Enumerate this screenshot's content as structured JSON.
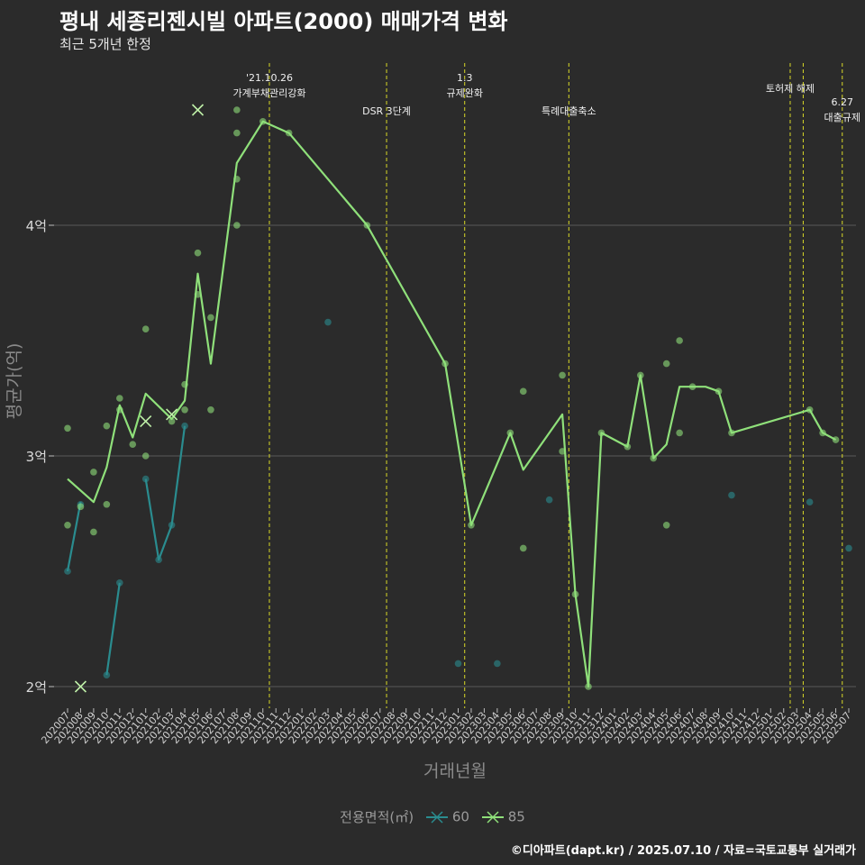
{
  "title": "평내 세종리젠시빌 아파트(2000) 매매가격 변화",
  "subtitle": "최근 5개년 한정",
  "caption": "©디아파트(dapt.kr) / 2025.07.10 / 자료=국토교통부 실거래가",
  "legend": {
    "title": "전용면적(㎡)",
    "items": [
      "60",
      "85"
    ]
  },
  "colors": {
    "background": "#2b2b2b",
    "series60": "#2a8c8f",
    "series85": "#8fe07a",
    "events": "#d9d927",
    "grid": "#5a5a5a"
  },
  "chart_data": {
    "type": "line",
    "title": "평내 세종리젠시빌 아파트(2000) 매매가격 변화",
    "subtitle": "최근 5개년 한정",
    "xlabel": "거래년월",
    "ylabel": "평균가(억)",
    "y_unit": "억",
    "ylim": [
      1.9,
      4.5
    ],
    "yticks": [
      2,
      3,
      4
    ],
    "ytick_labels": [
      "2억",
      "3억",
      "4억"
    ],
    "grid": "horizontal",
    "legend_position": "bottom",
    "categories": [
      "202007",
      "202008",
      "202009",
      "202010",
      "202011",
      "202012",
      "202101",
      "202102",
      "202103",
      "202104",
      "202105",
      "202106",
      "202107",
      "202108",
      "202109",
      "202110",
      "202111",
      "202112",
      "202201",
      "202202",
      "202203",
      "202204",
      "202205",
      "202206",
      "202207",
      "202208",
      "202209",
      "202210",
      "202211",
      "202212",
      "202301",
      "202302",
      "202303",
      "202304",
      "202305",
      "202306",
      "202307",
      "202308",
      "202309",
      "202310",
      "202311",
      "202312",
      "202401",
      "202402",
      "202403",
      "202404",
      "202405",
      "202406",
      "202407",
      "202408",
      "202409",
      "202410",
      "202411",
      "202412",
      "202501",
      "202502",
      "202503",
      "202504",
      "202505",
      "202506",
      "202507"
    ],
    "series": [
      {
        "name": "60",
        "line": [
          [
            "202007",
            2.5
          ],
          [
            "202008",
            2.8
          ],
          [
            "202009",
            null
          ],
          [
            "202010",
            2.05
          ],
          [
            "202011",
            2.45
          ],
          [
            "202012",
            null
          ],
          [
            "202101",
            2.9
          ],
          [
            "202102",
            2.55
          ],
          [
            "202103",
            2.7
          ],
          [
            "202104",
            3.13
          ],
          [
            "202105",
            null
          ],
          [
            "202504",
            2.8
          ],
          [
            "202505",
            null
          ],
          [
            "202506",
            null
          ],
          [
            "202507",
            2.6
          ]
        ],
        "points": [
          [
            "202007",
            2.5
          ],
          [
            "202008",
            2.79
          ],
          [
            "202010",
            2.05
          ],
          [
            "202011",
            2.45
          ],
          [
            "202101",
            2.9
          ],
          [
            "202102",
            2.55
          ],
          [
            "202103",
            2.7
          ],
          [
            "202104",
            3.13
          ],
          [
            "202203",
            3.58
          ],
          [
            "202301",
            2.1
          ],
          [
            "202304",
            2.1
          ],
          [
            "202308",
            2.81
          ],
          [
            "202410",
            2.83
          ],
          [
            "202504",
            2.8
          ],
          [
            "202507",
            2.6
          ]
        ],
        "cancelled": [
          [
            "202008",
            2.0
          ]
        ]
      },
      {
        "name": "85",
        "line": [
          [
            "202007",
            2.9
          ],
          [
            "202009",
            2.8
          ],
          [
            "202010",
            2.95
          ],
          [
            "202011",
            3.22
          ],
          [
            "202012",
            3.08
          ],
          [
            "202101",
            3.27
          ],
          [
            "202103",
            3.16
          ],
          [
            "202104",
            3.24
          ],
          [
            "202105",
            3.79
          ],
          [
            "202106",
            3.4
          ],
          [
            "202108",
            4.27
          ],
          [
            "202110",
            4.45
          ],
          [
            "202112",
            4.4
          ],
          [
            "202206",
            4.0
          ],
          [
            "202212",
            3.4
          ],
          [
            "202302",
            2.7
          ],
          [
            "202305",
            3.1
          ],
          [
            "202306",
            2.94
          ],
          [
            "202309",
            3.18
          ],
          [
            "202310",
            2.4
          ],
          [
            "202311",
            2.0
          ],
          [
            "202312",
            3.1
          ],
          [
            "202402",
            3.04
          ],
          [
            "202403",
            3.35
          ],
          [
            "202404",
            2.99
          ],
          [
            "202405",
            3.05
          ],
          [
            "202406",
            3.3
          ],
          [
            "202408",
            3.3
          ],
          [
            "202409",
            3.28
          ],
          [
            "202410",
            3.1
          ],
          [
            "202504",
            3.2
          ],
          [
            "202505",
            3.1
          ],
          [
            "202506",
            3.07
          ]
        ],
        "points": [
          [
            "202007",
            3.12
          ],
          [
            "202007",
            2.7
          ],
          [
            "202008",
            2.78
          ],
          [
            "202009",
            2.93
          ],
          [
            "202009",
            2.67
          ],
          [
            "202010",
            3.13
          ],
          [
            "202010",
            2.79
          ],
          [
            "202011",
            3.25
          ],
          [
            "202011",
            3.2
          ],
          [
            "202012",
            3.05
          ],
          [
            "202101",
            3.55
          ],
          [
            "202101",
            3.0
          ],
          [
            "202103",
            3.15
          ],
          [
            "202104",
            3.31
          ],
          [
            "202104",
            3.2
          ],
          [
            "202105",
            3.88
          ],
          [
            "202105",
            3.7
          ],
          [
            "202106",
            3.6
          ],
          [
            "202106",
            3.2
          ],
          [
            "202108",
            4.5
          ],
          [
            "202108",
            4.4
          ],
          [
            "202108",
            4.2
          ],
          [
            "202108",
            4.0
          ],
          [
            "202110",
            4.45
          ],
          [
            "202112",
            4.4
          ],
          [
            "202206",
            4.0
          ],
          [
            "202212",
            3.4
          ],
          [
            "202302",
            2.7
          ],
          [
            "202305",
            3.1
          ],
          [
            "202306",
            3.28
          ],
          [
            "202306",
            2.6
          ],
          [
            "202309",
            3.35
          ],
          [
            "202309",
            3.02
          ],
          [
            "202310",
            2.4
          ],
          [
            "202311",
            2.0
          ],
          [
            "202312",
            3.1
          ],
          [
            "202402",
            3.04
          ],
          [
            "202403",
            3.35
          ],
          [
            "202404",
            2.99
          ],
          [
            "202405",
            3.4
          ],
          [
            "202405",
            2.7
          ],
          [
            "202406",
            3.5
          ],
          [
            "202406",
            3.1
          ],
          [
            "202407",
            3.3
          ],
          [
            "202409",
            3.28
          ],
          [
            "202410",
            3.1
          ],
          [
            "202504",
            3.2
          ],
          [
            "202505",
            3.1
          ],
          [
            "202506",
            3.07
          ]
        ],
        "cancelled": [
          [
            "202105",
            4.5
          ],
          [
            "202101",
            3.15
          ],
          [
            "202103",
            3.18
          ]
        ]
      }
    ],
    "events": [
      {
        "x": "202110",
        "label": "'21.10.26\n가계부채관리강화"
      },
      {
        "x": "202207",
        "label": "DSR 3단계"
      },
      {
        "x": "202301",
        "label": "1.3\n규제완화"
      },
      {
        "x": "202309",
        "label": "특례대출축소"
      },
      {
        "x": "202502",
        "label": "토허제 해제"
      },
      {
        "x": "202503",
        "label": ""
      },
      {
        "x": "202506",
        "label": "6.27\n대출규제"
      }
    ]
  }
}
